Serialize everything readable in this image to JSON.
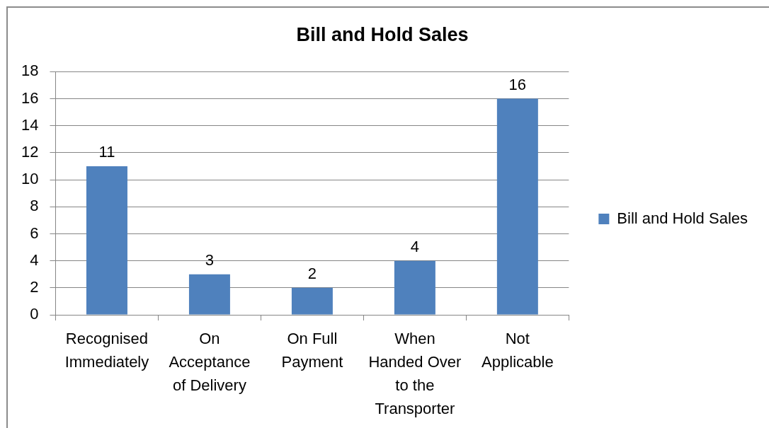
{
  "chart_data": {
    "type": "bar",
    "title": "Bill and Hold Sales",
    "categories": [
      "Recognised Immediately",
      "On Acceptance of Delivery",
      "On Full Payment",
      "When Handed Over to the Transporter",
      "Not Applicable"
    ],
    "series": [
      {
        "name": "Bill and Hold Sales",
        "color": "#4f81bd",
        "values": [
          11,
          3,
          2,
          4,
          16
        ]
      }
    ],
    "ylim": [
      0,
      18
    ],
    "yticks": [
      0,
      2,
      4,
      6,
      8,
      10,
      12,
      14,
      16,
      18
    ],
    "grid": "y",
    "legend": "right",
    "data_labels": true
  }
}
